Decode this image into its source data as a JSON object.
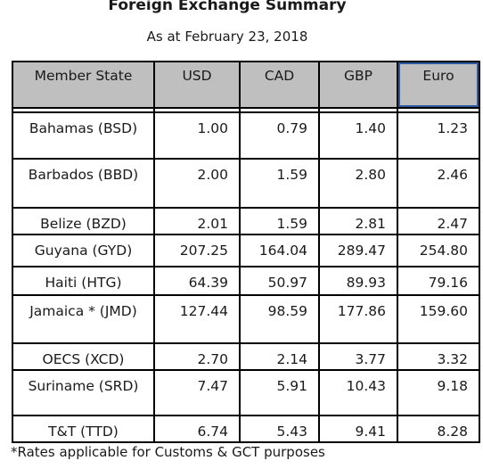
{
  "title": "Foreign Exchange Summary",
  "subtitle": "As at February 23, 2018",
  "table": {
    "headers": [
      "Member State",
      "USD",
      "CAD",
      "GBP",
      "Euro"
    ],
    "rows": [
      {
        "state": "Bahamas (BSD)",
        "usd": "1.00",
        "cad": "0.79",
        "gbp": "1.40",
        "euro": "1.23"
      },
      {
        "state": "Barbados (BBD)",
        "usd": "2.00",
        "cad": "1.59",
        "gbp": "2.80",
        "euro": "2.46"
      },
      {
        "state": "Belize (BZD)",
        "usd": "2.01",
        "cad": "1.59",
        "gbp": "2.81",
        "euro": "2.47"
      },
      {
        "state": "Guyana (GYD)",
        "usd": "207.25",
        "cad": "164.04",
        "gbp": "289.47",
        "euro": "254.80"
      },
      {
        "state": "Haiti (HTG)",
        "usd": "64.39",
        "cad": "50.97",
        "gbp": "89.93",
        "euro": "79.16"
      },
      {
        "state": "Jamaica * (JMD)",
        "usd": "127.44",
        "cad": "98.59",
        "gbp": "177.86",
        "euro": "159.60"
      },
      {
        "state": "OECS (XCD)",
        "usd": "2.70",
        "cad": "2.14",
        "gbp": "3.77",
        "euro": "3.32"
      },
      {
        "state": "Suriname (SRD)",
        "usd": "7.47",
        "cad": "5.91",
        "gbp": "10.43",
        "euro": "9.18"
      },
      {
        "state": "T&T (TTD)",
        "usd": "6.74",
        "cad": "5.43",
        "gbp": "9.41",
        "euro": "8.28"
      }
    ]
  },
  "footnote": "*Rates applicable for Customs & GCT purposes"
}
